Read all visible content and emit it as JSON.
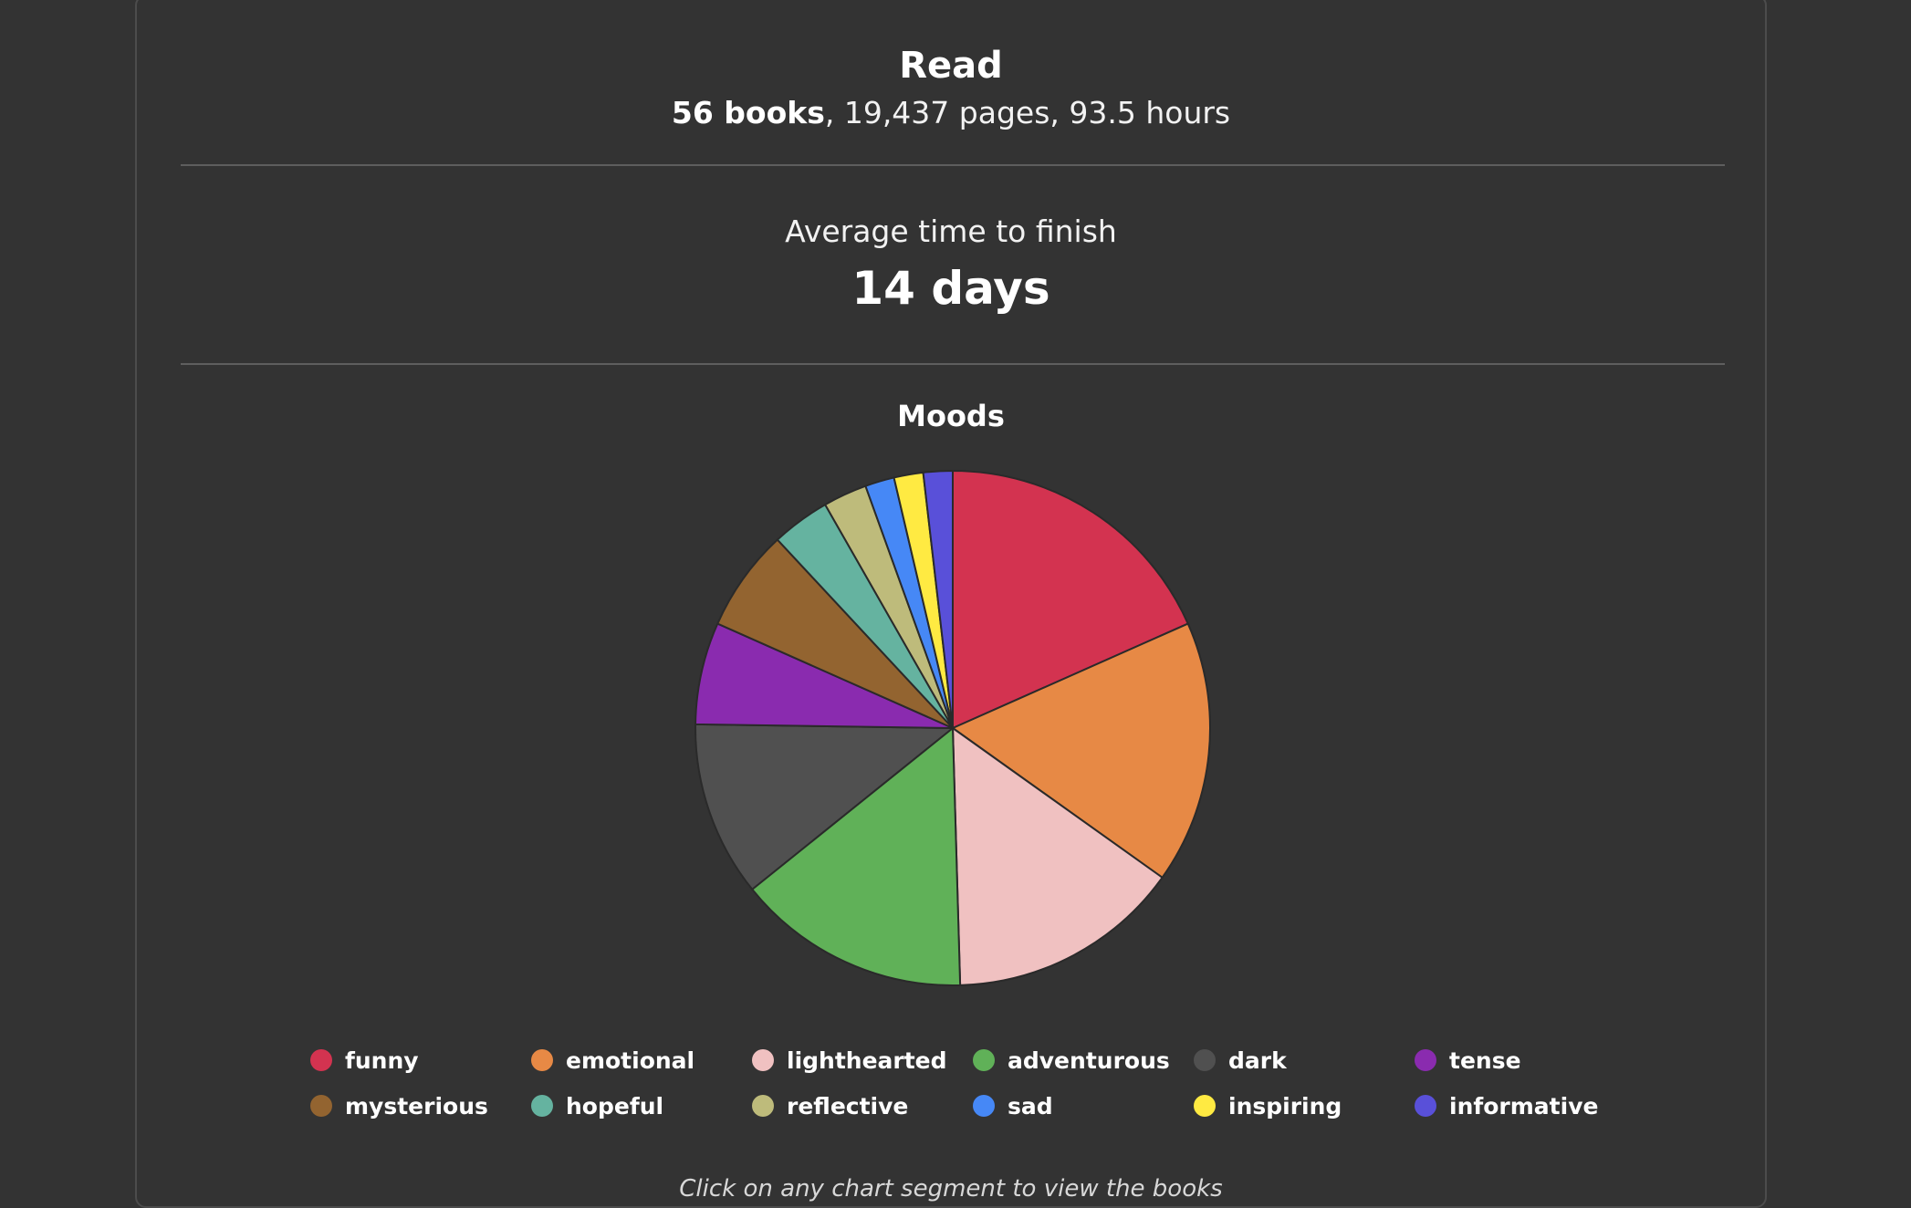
{
  "read": {
    "title": "Read",
    "books": "56 books",
    "rest": ", 19,437 pages, 93.5 hours"
  },
  "average": {
    "label": "Average time to finish",
    "value": "14 days"
  },
  "moods": {
    "title": "Moods",
    "footnote": "Click on any chart segment to view the books"
  },
  "chart_data": {
    "type": "pie",
    "title": "Moods",
    "categories": [
      "funny",
      "emotional",
      "lighthearted",
      "adventurous",
      "dark",
      "tense",
      "mysterious",
      "hopeful",
      "reflective",
      "sad",
      "inspiring",
      "informative"
    ],
    "values": [
      10,
      9,
      8,
      8,
      6,
      3.5,
      3.5,
      2,
      1.5,
      1,
      1,
      1
    ],
    "colors": [
      "#d33350",
      "#e78945",
      "#f0c1c1",
      "#60b158",
      "#505050",
      "#8a2baf",
      "#936430",
      "#65b3a0",
      "#bebb7b",
      "#4688f6",
      "#ffea42",
      "#5950d9"
    ],
    "legend_position": "bottom"
  }
}
